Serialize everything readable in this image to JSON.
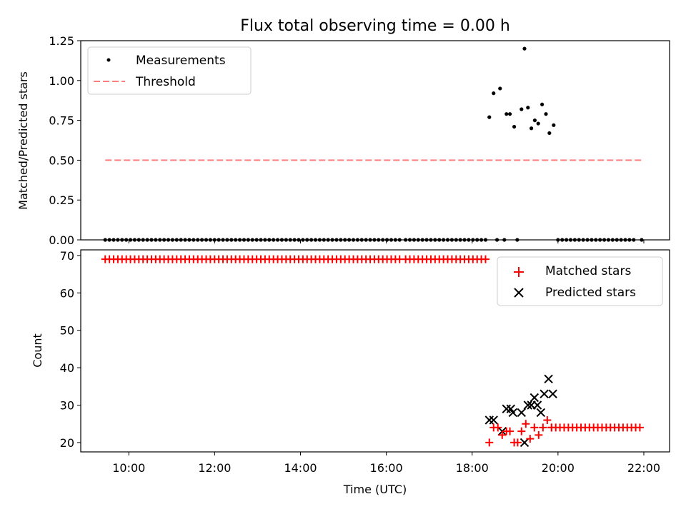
{
  "title": "Flux total observing time = 0.00 h",
  "xlabel": "Time (UTC)",
  "x_ticks": [
    "10:00",
    "12:00",
    "14:00",
    "16:00",
    "18:00",
    "20:00",
    "22:00"
  ],
  "colors": {
    "measurement": "#000000",
    "threshold": "#ff7f7f",
    "matched": "#ff0000",
    "predicted": "#000000"
  },
  "chart_data": [
    {
      "type": "scatter",
      "ylabel": "Matched/Predicted stars",
      "x_unit": "hours UTC",
      "xlim": [
        8.88,
        22.6
      ],
      "ylim": [
        0,
        1.25
      ],
      "y_ticks": [
        "0.00",
        "0.25",
        "0.50",
        "0.75",
        "1.00",
        "1.25"
      ],
      "legend_position": "top-left",
      "series": [
        {
          "name": "Measurements",
          "marker": "dot",
          "points": [
            [
              18.4,
              0.77
            ],
            [
              18.5,
              0.92
            ],
            [
              18.65,
              0.95
            ],
            [
              18.8,
              0.79
            ],
            [
              18.88,
              0.79
            ],
            [
              18.98,
              0.71
            ],
            [
              19.15,
              0.82
            ],
            [
              19.22,
              1.2
            ],
            [
              19.3,
              0.83
            ],
            [
              19.38,
              0.7
            ],
            [
              19.46,
              0.75
            ],
            [
              19.54,
              0.73
            ],
            [
              19.63,
              0.85
            ],
            [
              19.72,
              0.79
            ],
            [
              19.8,
              0.67
            ],
            [
              19.9,
              0.72
            ]
          ],
          "zero_runs": [
            [
              9.45,
              16.35,
              0.098
            ],
            [
              16.45,
              18.35,
              0.098
            ],
            [
              20.0,
              21.85,
              0.098
            ]
          ],
          "zero_points": [
            18.58,
            18.75,
            19.05,
            21.95
          ]
        },
        {
          "name": "Threshold",
          "marker": "dashed-line",
          "x": [
            9.45,
            21.95
          ],
          "y": [
            0.5,
            0.5
          ]
        }
      ]
    },
    {
      "type": "scatter",
      "ylabel": "Count",
      "x_unit": "hours UTC",
      "xlim": [
        8.88,
        22.6
      ],
      "ylim": [
        17.5,
        71.5
      ],
      "y_ticks": [
        "20",
        "30",
        "40",
        "50",
        "60",
        "70"
      ],
      "legend_position": "top-right",
      "series": [
        {
          "name": "Matched stars",
          "marker": "plus",
          "constant_runs": [
            [
              9.45,
              16.35,
              0.098,
              69
            ],
            [
              16.45,
              18.35,
              0.098,
              69
            ],
            [
              19.85,
              21.95,
              0.098,
              24
            ]
          ],
          "points": [
            [
              18.4,
              20
            ],
            [
              18.5,
              24
            ],
            [
              18.6,
              24
            ],
            [
              18.7,
              22
            ],
            [
              18.8,
              23
            ],
            [
              18.88,
              23
            ],
            [
              18.98,
              20
            ],
            [
              19.06,
              20
            ],
            [
              19.15,
              23
            ],
            [
              19.25,
              25
            ],
            [
              19.35,
              21
            ],
            [
              19.45,
              24
            ],
            [
              19.55,
              22
            ],
            [
              19.65,
              24
            ],
            [
              19.75,
              26
            ],
            [
              19.85,
              24
            ]
          ]
        },
        {
          "name": "Predicted stars",
          "marker": "x",
          "points": [
            [
              18.4,
              26
            ],
            [
              18.5,
              26
            ],
            [
              18.7,
              23
            ],
            [
              18.8,
              29
            ],
            [
              18.9,
              29
            ],
            [
              18.95,
              28
            ],
            [
              19.15,
              28
            ],
            [
              19.22,
              20
            ],
            [
              19.3,
              30
            ],
            [
              19.38,
              30
            ],
            [
              19.45,
              32
            ],
            [
              19.52,
              30
            ],
            [
              19.6,
              28
            ],
            [
              19.68,
              33
            ],
            [
              19.78,
              37
            ],
            [
              19.88,
              33
            ]
          ]
        }
      ]
    }
  ]
}
